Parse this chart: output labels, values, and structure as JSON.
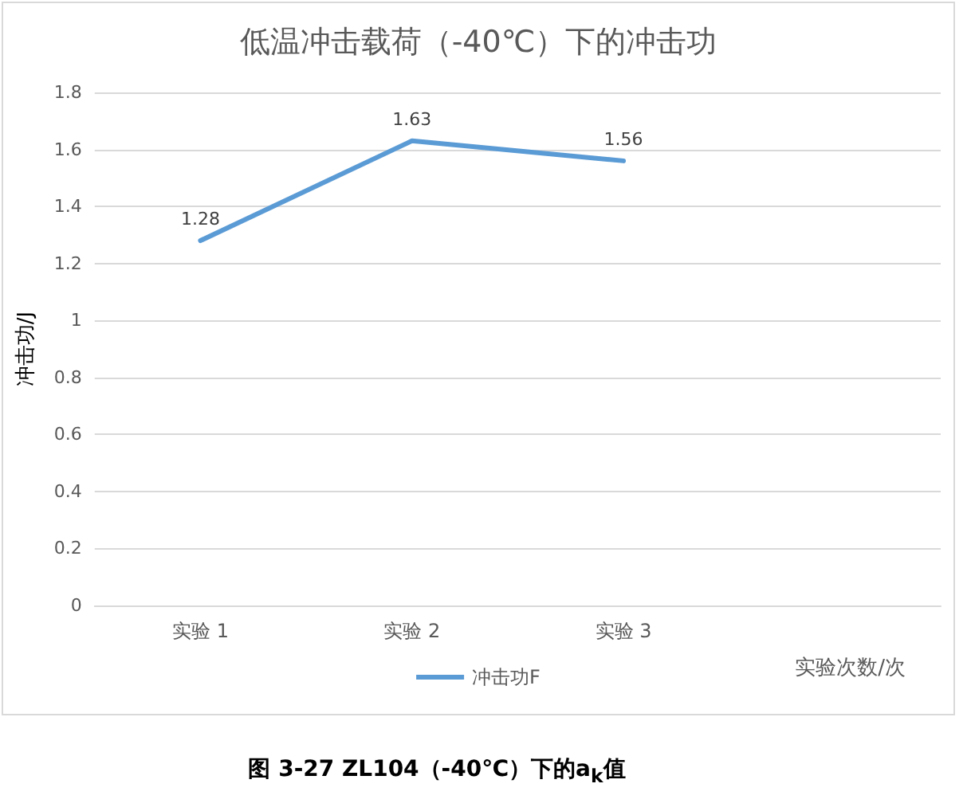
{
  "chart_data": {
    "type": "line",
    "title": "低温冲击载荷（-40℃）下的冲击功",
    "categories": [
      "实验 1",
      "实验 2",
      "实验 3",
      null
    ],
    "series": [
      {
        "name": "冲击功F",
        "color": "#5b9bd5",
        "values": [
          1.28,
          1.63,
          1.56,
          null
        ]
      }
    ],
    "xlabel": "实验次数/次",
    "ylabel": "冲击功/J",
    "ylim": [
      0,
      1.8
    ],
    "yticks": [
      0,
      0.2,
      0.4,
      0.6,
      0.8,
      1,
      1.2,
      1.4,
      1.6,
      1.8
    ],
    "grid": "y",
    "legend": "bottom",
    "marker": "none",
    "line_style": "solid",
    "data_labels": true,
    "annotations": [
      "图 3-27 ZL104（-40℃）下的a$_{k}$值"
    ]
  }
}
